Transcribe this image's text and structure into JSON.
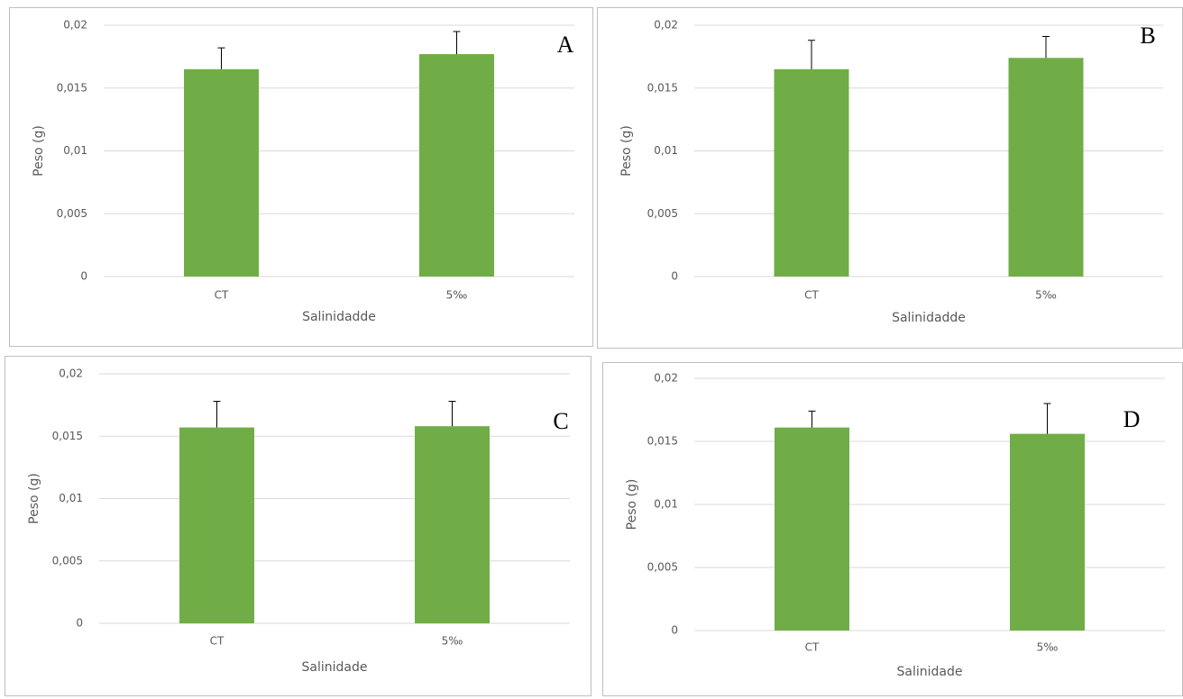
{
  "chart_data": [
    {
      "type": "bar",
      "annotation": "A",
      "x_label": "Salinidadde",
      "y_label": "Peso (g)",
      "categories": [
        "CT",
        "5‰"
      ],
      "values": [
        0.0165,
        0.0177
      ],
      "errors": [
        0.0017,
        0.0018
      ],
      "color": "#70ad47",
      "ylim": [
        0,
        0.02
      ],
      "yticks": [
        0,
        {
          "value": 0.005,
          "label": "0,005"
        },
        {
          "value": 0.01,
          "label": "0,01"
        },
        {
          "value": 0.015,
          "label": "0,015"
        },
        {
          "value": 0.02,
          "label": "0,02"
        }
      ],
      "grid": true
    },
    {
      "type": "bar",
      "annotation": "B",
      "x_label": "Salinidadde",
      "y_label": "Peso (g)",
      "categories": [
        "CT",
        "5‰"
      ],
      "values": [
        0.0165,
        0.0174
      ],
      "errors": [
        0.0023,
        0.0017
      ],
      "color": "#70ad47",
      "ylim": [
        0,
        0.02
      ],
      "yticks": [
        0,
        {
          "value": 0.005,
          "label": "0,005"
        },
        {
          "value": 0.01,
          "label": "0,01"
        },
        {
          "value": 0.015,
          "label": "0,015"
        },
        {
          "value": 0.02,
          "label": "0,02"
        }
      ],
      "grid": true
    },
    {
      "type": "bar",
      "annotation": "C",
      "x_label": "Salinidade",
      "y_label": "Peso (g)",
      "categories": [
        "CT",
        "5‰"
      ],
      "values": [
        0.0157,
        0.0158
      ],
      "errors": [
        0.0021,
        0.002
      ],
      "color": "#70ad47",
      "ylim": [
        0,
        0.02
      ],
      "yticks": [
        0,
        {
          "value": 0.005,
          "label": "0,005"
        },
        {
          "value": 0.01,
          "label": "0,01"
        },
        {
          "value": 0.015,
          "label": "0,015"
        },
        {
          "value": 0.02,
          "label": "0,02"
        }
      ],
      "grid": true
    },
    {
      "type": "bar",
      "annotation": "D",
      "x_label": "Salinidade",
      "y_label": "Peso (g)",
      "categories": [
        "CT",
        "5‰"
      ],
      "values": [
        0.0161,
        0.0156
      ],
      "errors": [
        0.0013,
        0.0024
      ],
      "color": "#70ad47",
      "ylim": [
        0,
        0.02
      ],
      "yticks": [
        0,
        {
          "value": 0.005,
          "label": "0,005"
        },
        {
          "value": 0.01,
          "label": "0,01"
        },
        {
          "value": 0.015,
          "label": "0,015"
        },
        {
          "value": 0.02,
          "label": "0,02"
        }
      ],
      "grid": true
    }
  ]
}
